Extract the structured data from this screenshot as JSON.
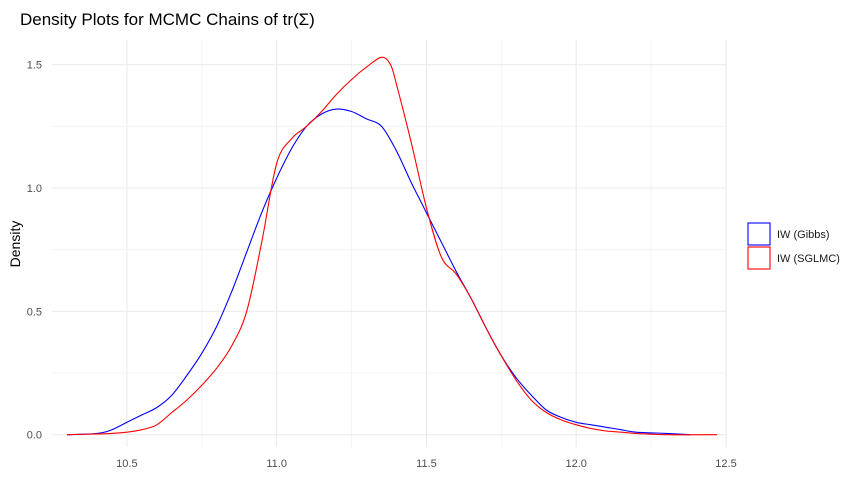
{
  "chart_data": {
    "type": "line",
    "title": "Density Plots for MCMC Chains of tr(Σ)",
    "xlabel": "",
    "ylabel": "Density",
    "xlim": [
      10.25,
      12.5
    ],
    "ylim": [
      -0.05,
      1.6
    ],
    "x_ticks": [
      10.5,
      11.0,
      11.5,
      12.0,
      12.5
    ],
    "x_tick_labels": [
      "10.5",
      "11.0",
      "11.5",
      "12.0",
      "12.5"
    ],
    "y_ticks": [
      0.0,
      0.5,
      1.0,
      1.5
    ],
    "y_tick_labels": [
      "0.0",
      "0.5",
      "1.0",
      "1.5"
    ],
    "grid": true,
    "legend_position": "right",
    "series": [
      {
        "name": "IW (Gibbs)",
        "color": "#0000ff",
        "x": [
          10.3,
          10.4,
          10.45,
          10.5,
          10.55,
          10.6,
          10.65,
          10.7,
          10.75,
          10.8,
          10.85,
          10.9,
          10.95,
          11.0,
          11.05,
          11.1,
          11.15,
          11.2,
          11.25,
          11.3,
          11.35,
          11.4,
          11.45,
          11.5,
          11.55,
          11.6,
          11.65,
          11.7,
          11.75,
          11.8,
          11.85,
          11.9,
          11.95,
          12.0,
          12.05,
          12.1,
          12.15,
          12.2,
          12.3,
          12.38
        ],
        "y": [
          0.0,
          0.005,
          0.02,
          0.05,
          0.08,
          0.11,
          0.16,
          0.24,
          0.33,
          0.44,
          0.58,
          0.74,
          0.9,
          1.04,
          1.16,
          1.25,
          1.3,
          1.32,
          1.31,
          1.28,
          1.25,
          1.15,
          1.02,
          0.9,
          0.78,
          0.66,
          0.55,
          0.43,
          0.32,
          0.23,
          0.16,
          0.1,
          0.07,
          0.05,
          0.04,
          0.03,
          0.02,
          0.01,
          0.005,
          0.0
        ]
      },
      {
        "name": "IW (SGLMC)",
        "color": "#ff0000",
        "x": [
          10.3,
          10.4,
          10.45,
          10.5,
          10.55,
          10.6,
          10.65,
          10.7,
          10.75,
          10.8,
          10.85,
          10.9,
          10.95,
          11.0,
          11.05,
          11.1,
          11.15,
          11.2,
          11.25,
          11.3,
          11.35,
          11.38,
          11.4,
          11.45,
          11.5,
          11.55,
          11.6,
          11.65,
          11.7,
          11.75,
          11.8,
          11.85,
          11.9,
          11.95,
          12.0,
          12.05,
          12.1,
          12.15,
          12.2,
          12.3,
          12.47
        ],
        "y": [
          0.0,
          0.003,
          0.005,
          0.01,
          0.02,
          0.04,
          0.09,
          0.14,
          0.2,
          0.27,
          0.36,
          0.5,
          0.78,
          1.1,
          1.2,
          1.25,
          1.31,
          1.38,
          1.44,
          1.49,
          1.53,
          1.5,
          1.42,
          1.18,
          0.92,
          0.72,
          0.65,
          0.55,
          0.43,
          0.32,
          0.22,
          0.14,
          0.09,
          0.06,
          0.04,
          0.025,
          0.015,
          0.01,
          0.005,
          0.0,
          0.0
        ]
      }
    ]
  }
}
